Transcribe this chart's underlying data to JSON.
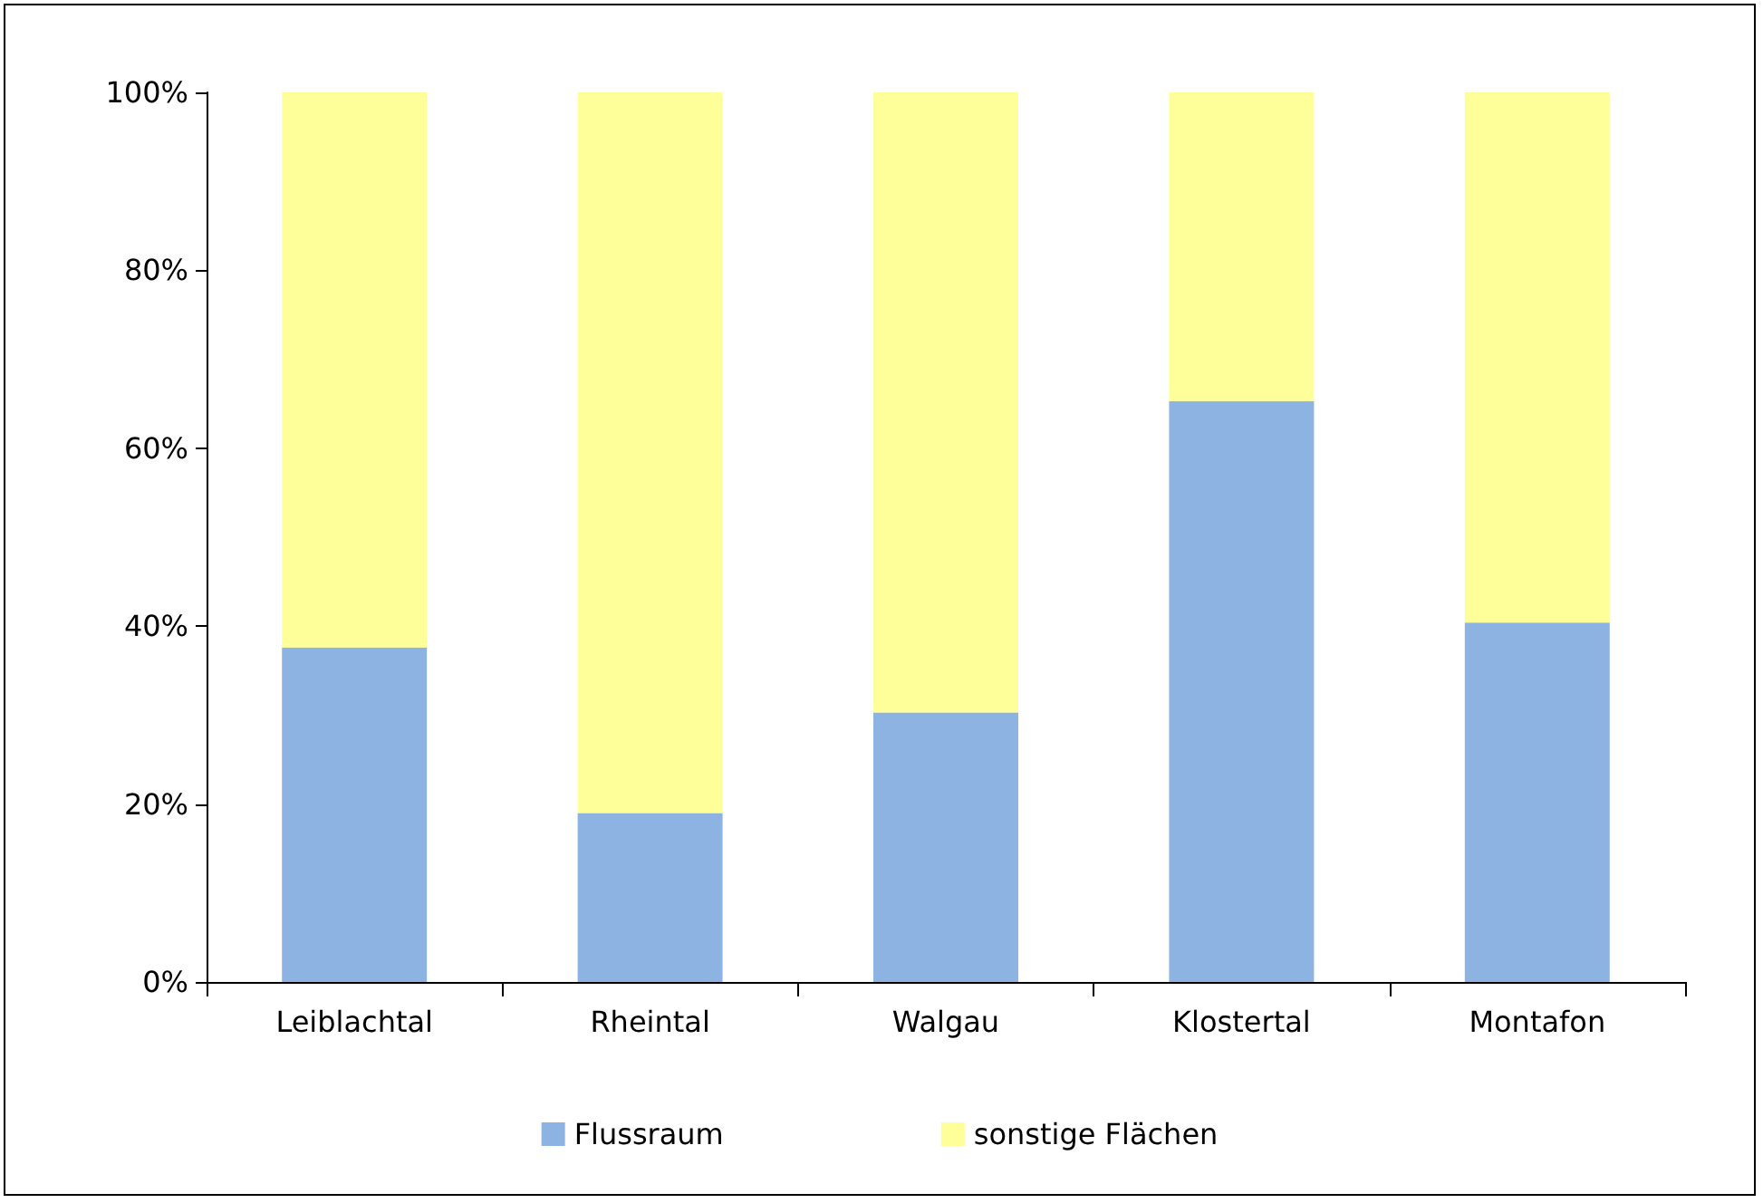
{
  "chart_data": {
    "type": "bar",
    "stacked": true,
    "categories": [
      "Leiblachtal",
      "Rheintal",
      "Walgau",
      "Klostertal",
      "Montafon"
    ],
    "series": [
      {
        "name": "Flussraum",
        "color": "#8db3e2",
        "values": [
          37.6,
          19.0,
          30.3,
          65.3,
          40.4
        ]
      },
      {
        "name": "sonstige Flächen",
        "color": "#ffff99",
        "values": [
          62.4,
          81.0,
          69.7,
          34.7,
          59.6
        ]
      }
    ],
    "ylim": [
      0,
      100
    ],
    "yticks": [
      {
        "value": 0,
        "label": "0%"
      },
      {
        "value": 20,
        "label": "20%"
      },
      {
        "value": 40,
        "label": "40%"
      },
      {
        "value": 60,
        "label": "60%"
      },
      {
        "value": 80,
        "label": "80%"
      },
      {
        "value": 100,
        "label": "100%"
      }
    ],
    "grid": false,
    "legend": "bottom"
  }
}
